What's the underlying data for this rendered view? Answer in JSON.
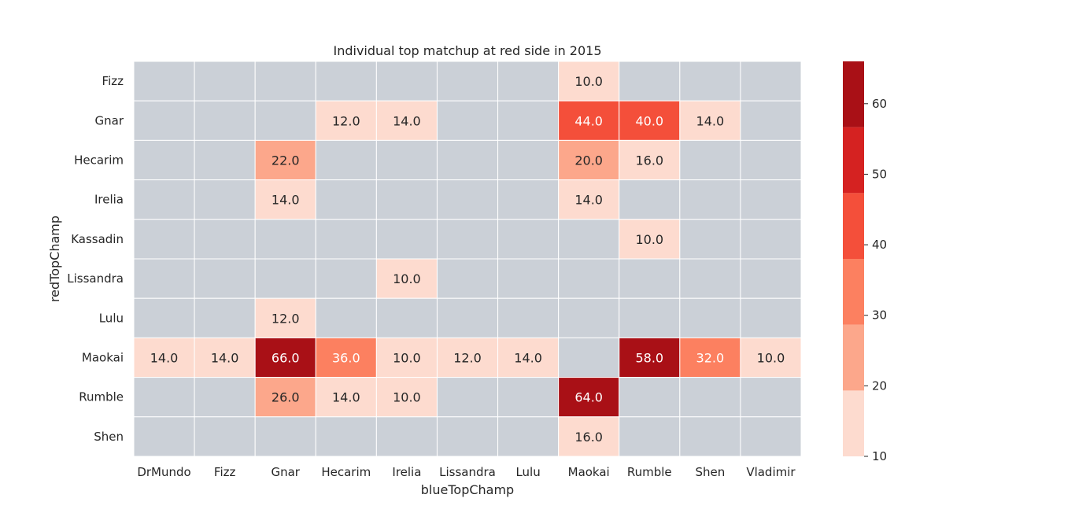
{
  "chart_data": {
    "type": "heatmap",
    "title": "Individual top matchup at red side in 2015",
    "xlabel": "blueTopChamp",
    "ylabel": "redTopChamp",
    "x_categories": [
      "DrMundo",
      "Fizz",
      "Gnar",
      "Hecarim",
      "Irelia",
      "Lissandra",
      "Lulu",
      "Maokai",
      "Rumble",
      "Shen",
      "Vladimir"
    ],
    "y_categories": [
      "Fizz",
      "Gnar",
      "Hecarim",
      "Irelia",
      "Kassadin",
      "Lissandra",
      "Lulu",
      "Maokai",
      "Rumble",
      "Shen"
    ],
    "values": [
      [
        null,
        null,
        null,
        null,
        null,
        null,
        null,
        10.0,
        null,
        null,
        null
      ],
      [
        null,
        null,
        null,
        12.0,
        14.0,
        null,
        null,
        44.0,
        40.0,
        14.0,
        null
      ],
      [
        null,
        null,
        22.0,
        null,
        null,
        null,
        null,
        20.0,
        16.0,
        null,
        null
      ],
      [
        null,
        null,
        14.0,
        null,
        null,
        null,
        null,
        14.0,
        null,
        null,
        null
      ],
      [
        null,
        null,
        null,
        null,
        null,
        null,
        null,
        null,
        10.0,
        null,
        null
      ],
      [
        null,
        null,
        null,
        null,
        10.0,
        null,
        null,
        null,
        null,
        null,
        null
      ],
      [
        null,
        null,
        12.0,
        null,
        null,
        null,
        null,
        null,
        null,
        null,
        null
      ],
      [
        14.0,
        14.0,
        66.0,
        36.0,
        10.0,
        12.0,
        14.0,
        null,
        58.0,
        32.0,
        10.0
      ],
      [
        null,
        null,
        26.0,
        14.0,
        10.0,
        null,
        null,
        64.0,
        null,
        null,
        null
      ],
      [
        null,
        null,
        null,
        null,
        null,
        null,
        null,
        16.0,
        null,
        null,
        null
      ]
    ],
    "colorbar": {
      "range": [
        10,
        66
      ],
      "ticks": [
        "10",
        "20",
        "30",
        "40",
        "50",
        "60"
      ],
      "bins": [
        {
          "from": 10,
          "to": 19.33,
          "color": "#fddbcf"
        },
        {
          "from": 19.33,
          "to": 28.67,
          "color": "#fca78b"
        },
        {
          "from": 28.67,
          "to": 38.0,
          "color": "#fc8060"
        },
        {
          "from": 38.0,
          "to": 47.33,
          "color": "#f44f3a"
        },
        {
          "from": 47.33,
          "to": 56.67,
          "color": "#d52221"
        },
        {
          "from": 56.67,
          "to": 66.0,
          "color": "#a91016"
        }
      ]
    },
    "missing_color": "#cbd0d7",
    "grid_color": "#ffffff",
    "legend_placement": "right"
  }
}
